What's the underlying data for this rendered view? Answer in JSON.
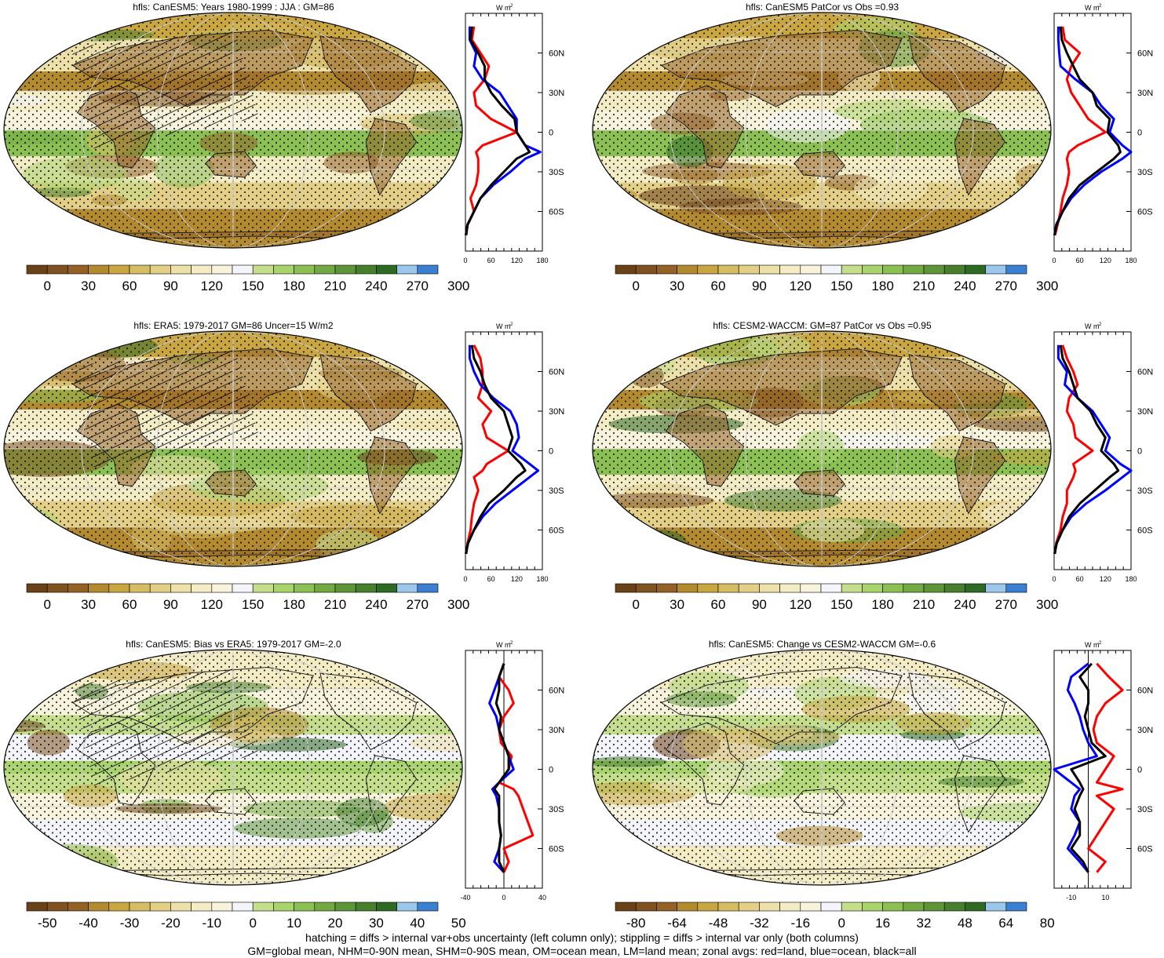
{
  "figure": {
    "footer_line1": "hatching = diffs > internal var+obs uncertainty (left column only); stippling = diffs > internal var only (both columns)",
    "footer_line2": "GM=global mean, NHM=0-90N mean, SHM=0-90S mean, OM=ocean mean, LM=land mean; zonal avgs: red=land, blue=ocean, black=all"
  },
  "zonal_units": "W m",
  "zonal_units_exp": "-2",
  "lat_labels": [
    "60N",
    "30N",
    "0",
    "30S",
    "60S"
  ],
  "colors": {
    "land": "#ff0000",
    "ocean": "#0000ff",
    "all": "#000000",
    "stipple": "#000000",
    "continent": "#222222"
  },
  "palettes": {
    "abs": [
      "#6b4218",
      "#7f5220",
      "#946226",
      "#b38a2d",
      "#c9a63f",
      "#d6bc62",
      "#e3cf86",
      "#ede0a8",
      "#f4ecc5",
      "#f7f3dc",
      "#f4f4fb",
      "#c4de8b",
      "#a9d36b",
      "#8cc052",
      "#73a943",
      "#5f9539",
      "#477f2d",
      "#2f6a24",
      "#9cc7ec",
      "#3a7fd0"
    ],
    "diff": [
      "#6b4218",
      "#7f5220",
      "#946226",
      "#b38a2d",
      "#c9a63f",
      "#d6bc62",
      "#e3cf86",
      "#ede0a8",
      "#f4ecc5",
      "#f7f3dc",
      "#f4f4fb",
      "#c4de8b",
      "#a9d36b",
      "#8cc052",
      "#73a943",
      "#5f9539",
      "#477f2d",
      "#2f6a24",
      "#9cc7ec",
      "#3a7fd0"
    ]
  },
  "panels": [
    {
      "title": "hfls: CanESM5: Years 1980-1999 : JJA : GM=86",
      "palette": "abs",
      "hatch": true,
      "colorbar_labels": [
        "0",
        "30",
        "60",
        "90",
        "120",
        "150",
        "180",
        "210",
        "240",
        "270",
        "300"
      ],
      "chart_data": {
        "type": "line",
        "orientation": "zonal-profile",
        "xlim": [
          0,
          180
        ],
        "xticks": [
          "0",
          "60",
          "120",
          "180"
        ],
        "lat": [
          80,
          70,
          60,
          50,
          40,
          30,
          20,
          10,
          0,
          -10,
          -15,
          -20,
          -30,
          -40,
          -50,
          -60,
          -70,
          -78
        ],
        "series": [
          {
            "name": "land",
            "color": "#ff0000",
            "values": [
              20,
              15,
              35,
              55,
              45,
              20,
              25,
              60,
              120,
              40,
              25,
              30,
              30,
              25,
              12,
              20,
              5,
              2
            ]
          },
          {
            "name": "ocean",
            "color": "#0000ff",
            "values": [
              10,
              10,
              25,
              20,
              40,
              80,
              100,
              120,
              120,
              140,
              175,
              140,
              105,
              65,
              35,
              20,
              5,
              1
            ]
          },
          {
            "name": "all",
            "color": "#000000",
            "values": [
              15,
              12,
              30,
              45,
              45,
              60,
              85,
              115,
              120,
              140,
              150,
              120,
              90,
              60,
              35,
              20,
              5,
              1
            ]
          }
        ]
      }
    },
    {
      "title": "hfls: CanESM5 PatCor vs Obs =0.93",
      "palette": "abs",
      "hatch": false,
      "colorbar_labels": [
        "0",
        "30",
        "60",
        "90",
        "120",
        "150",
        "180",
        "210",
        "240",
        "270",
        "300"
      ],
      "chart_data": {
        "type": "line",
        "orientation": "zonal-profile",
        "xlim": [
          0,
          180
        ],
        "xticks": [
          "0",
          "60",
          "120",
          "180"
        ],
        "lat": [
          80,
          70,
          60,
          50,
          40,
          30,
          20,
          10,
          0,
          -10,
          -15,
          -20,
          -30,
          -40,
          -50,
          -60,
          -70,
          -78
        ],
        "series": [
          {
            "name": "land",
            "color": "#ff0000",
            "values": [
              20,
              25,
              60,
              40,
              30,
              40,
              60,
              80,
              120,
              55,
              35,
              30,
              35,
              30,
              20,
              15,
              8,
              2
            ]
          },
          {
            "name": "ocean",
            "color": "#0000ff",
            "values": [
              10,
              10,
              12,
              15,
              50,
              90,
              110,
              140,
              130,
              160,
              180,
              160,
              110,
              70,
              40,
              20,
              5,
              1
            ]
          },
          {
            "name": "all",
            "color": "#000000",
            "values": [
              15,
              18,
              30,
              45,
              60,
              90,
              100,
              130,
              125,
              150,
              155,
              140,
              100,
              60,
              35,
              20,
              6,
              1
            ]
          }
        ]
      }
    },
    {
      "title": "hfls: ERA5: 1979-2017 GM=86 Uncer=15 W/m2",
      "palette": "abs",
      "hatch": true,
      "colorbar_labels": [
        "0",
        "30",
        "60",
        "90",
        "120",
        "150",
        "180",
        "210",
        "240",
        "270",
        "300"
      ],
      "chart_data": {
        "type": "line",
        "orientation": "zonal-profile",
        "xlim": [
          0,
          180
        ],
        "xticks": [
          "0",
          "60",
          "120",
          "180"
        ],
        "lat": [
          80,
          70,
          60,
          50,
          40,
          30,
          20,
          10,
          0,
          -10,
          -15,
          -20,
          -30,
          -40,
          -50,
          -60,
          -70,
          -78
        ],
        "series": [
          {
            "name": "land",
            "color": "#ff0000",
            "values": [
              20,
              35,
              40,
              40,
              30,
              60,
              40,
              50,
              100,
              50,
              40,
              20,
              30,
              20,
              15,
              12,
              5,
              2
            ]
          },
          {
            "name": "ocean",
            "color": "#0000ff",
            "values": [
              10,
              10,
              20,
              35,
              65,
              105,
              120,
              125,
              110,
              150,
              170,
              150,
              110,
              70,
              40,
              20,
              6,
              1
            ]
          },
          {
            "name": "all",
            "color": "#000000",
            "values": [
              15,
              20,
              35,
              45,
              60,
              90,
              100,
              110,
              100,
              130,
              140,
              120,
              90,
              55,
              35,
              20,
              6,
              1
            ]
          }
        ]
      }
    },
    {
      "title": "hfls: CESM2-WACCM: GM=87 PatCor vs Obs =0.95",
      "palette": "abs",
      "hatch": false,
      "colorbar_labels": [
        "0",
        "30",
        "60",
        "90",
        "120",
        "150",
        "180",
        "210",
        "240",
        "270",
        "300"
      ],
      "chart_data": {
        "type": "line",
        "orientation": "zonal-profile",
        "xlim": [
          0,
          180
        ],
        "xticks": [
          "0",
          "60",
          "120",
          "180"
        ],
        "lat": [
          80,
          70,
          60,
          50,
          40,
          30,
          20,
          10,
          0,
          -10,
          -15,
          -20,
          -30,
          -40,
          -50,
          -60,
          -70,
          -78
        ],
        "series": [
          {
            "name": "land",
            "color": "#ff0000",
            "values": [
              20,
              30,
              45,
              55,
              35,
              30,
              45,
              50,
              90,
              45,
              50,
              45,
              30,
              30,
              20,
              15,
              5,
              2
            ]
          },
          {
            "name": "ocean",
            "color": "#0000ff",
            "values": [
              10,
              10,
              30,
              25,
              55,
              90,
              110,
              130,
              120,
              155,
              180,
              160,
              120,
              75,
              40,
              20,
              6,
              1
            ]
          },
          {
            "name": "all",
            "color": "#000000",
            "values": [
              15,
              20,
              35,
              45,
              55,
              85,
              100,
              120,
              110,
              140,
              150,
              130,
              95,
              60,
              35,
              20,
              6,
              1
            ]
          }
        ]
      }
    },
    {
      "title": "hfls: CanESM5: Bias vs ERA5: 1979-2017 GM=-2.0",
      "palette": "diff",
      "hatch": true,
      "colorbar_labels": [
        "-50",
        "-40",
        "-30",
        "-20",
        "-10",
        "0",
        "10",
        "20",
        "30",
        "40",
        "50"
      ],
      "chart_data": {
        "type": "line",
        "orientation": "zonal-profile",
        "xlim": [
          -40,
          40
        ],
        "xticks": [
          "-40",
          "0",
          "40"
        ],
        "lat": [
          80,
          70,
          60,
          50,
          40,
          30,
          20,
          10,
          0,
          -10,
          -15,
          -20,
          -30,
          -40,
          -50,
          -60,
          -70,
          -78
        ],
        "series": [
          {
            "name": "land",
            "color": "#ff0000",
            "values": [
              0,
              -5,
              5,
              10,
              0,
              -5,
              -3,
              8,
              5,
              -5,
              10,
              15,
              20,
              25,
              30,
              0,
              5,
              0
            ]
          },
          {
            "name": "ocean",
            "color": "#0000ff",
            "values": [
              0,
              -5,
              -10,
              -15,
              -8,
              -5,
              0,
              5,
              10,
              -5,
              -12,
              -8,
              -5,
              -5,
              -3,
              -5,
              -10,
              0
            ]
          },
          {
            "name": "all",
            "color": "#000000",
            "values": [
              0,
              -5,
              -5,
              -8,
              -3,
              -5,
              0,
              5,
              5,
              -5,
              -10,
              -5,
              -5,
              -5,
              -3,
              -5,
              -5,
              0
            ]
          }
        ]
      }
    },
    {
      "title": "hfls: CanESM5: Change vs CESM2-WACCM GM=-0.6",
      "palette": "diff",
      "hatch": false,
      "colorbar_labels": [
        "-80",
        "-64",
        "-48",
        "-32",
        "-16",
        "0",
        "16",
        "32",
        "48",
        "64",
        "80"
      ],
      "chart_data": {
        "type": "line",
        "orientation": "zonal-profile",
        "xlim": [
          -20,
          25
        ],
        "xticks": [
          "-10",
          "10"
        ],
        "lat": [
          80,
          70,
          60,
          50,
          40,
          30,
          20,
          10,
          0,
          -10,
          -15,
          -20,
          -30,
          -40,
          -50,
          -60,
          -70,
          -78
        ],
        "series": [
          {
            "name": "land",
            "color": "#ff0000",
            "values": [
              5,
              12,
              20,
              10,
              5,
              3,
              5,
              15,
              10,
              5,
              20,
              5,
              15,
              10,
              5,
              0,
              10,
              5
            ]
          },
          {
            "name": "ocean",
            "color": "#0000ff",
            "values": [
              0,
              -10,
              -12,
              -8,
              -5,
              -3,
              0,
              5,
              -20,
              -10,
              -5,
              -8,
              -10,
              -5,
              -8,
              -12,
              -5,
              0
            ]
          },
          {
            "name": "all",
            "color": "#000000",
            "values": [
              2,
              -5,
              0,
              0,
              -2,
              0,
              2,
              10,
              -10,
              -5,
              -3,
              -5,
              -8,
              -5,
              -5,
              -10,
              -3,
              0
            ]
          }
        ]
      }
    }
  ]
}
